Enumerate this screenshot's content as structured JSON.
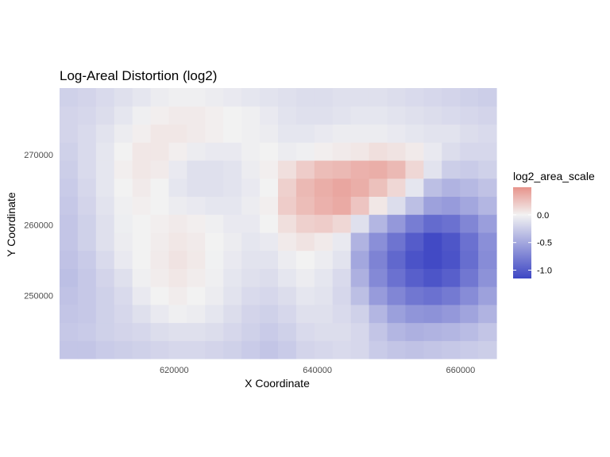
{
  "chart_data": {
    "type": "heatmap",
    "title": "Log-Areal Distortion (log2)",
    "xlabel": "X Coordinate",
    "ylabel": "Y Coordinate",
    "xlim": [
      604000,
      665000
    ],
    "ylim": [
      241000,
      279500
    ],
    "x_ticks": [
      620000,
      640000,
      660000
    ],
    "x_tick_labels": [
      "620000",
      "640000",
      "660000"
    ],
    "y_ticks": [
      250000,
      260000,
      270000
    ],
    "y_tick_labels": [
      "250000",
      "260000",
      "270000"
    ],
    "grid": false,
    "legend": {
      "title": "log2_area_scale",
      "placement": "right",
      "ticks": [
        0.0,
        -0.5,
        -1.0
      ],
      "tick_labels": [
        "0.0",
        "-0.5",
        "-1.0"
      ],
      "range": [
        -1.15,
        0.5
      ],
      "colors": {
        "low": "#3d46c4",
        "mid": "#f2f2f2",
        "high": "#e7938b"
      }
    },
    "grid_spec": {
      "cols": 24,
      "rows": 15,
      "x_start": 604000,
      "y_start": 241000,
      "x_step": 2541.667,
      "y_step": 2566.667
    },
    "z": [
      [
        -0.3,
        -0.3,
        -0.26,
        -0.24,
        -0.22,
        -0.2,
        -0.18,
        -0.18,
        -0.2,
        -0.22,
        -0.26,
        -0.3,
        -0.26,
        -0.2,
        -0.18,
        -0.16,
        -0.18,
        -0.26,
        -0.3,
        -0.32,
        -0.3,
        -0.28,
        -0.26,
        -0.24
      ],
      [
        -0.28,
        -0.26,
        -0.22,
        -0.2,
        -0.18,
        -0.14,
        -0.12,
        -0.12,
        -0.14,
        -0.18,
        -0.22,
        -0.26,
        -0.22,
        -0.16,
        -0.14,
        -0.14,
        -0.18,
        -0.3,
        -0.4,
        -0.44,
        -0.42,
        -0.4,
        -0.36,
        -0.3
      ],
      [
        -0.3,
        -0.28,
        -0.22,
        -0.18,
        -0.12,
        -0.06,
        -0.02,
        -0.04,
        -0.08,
        -0.14,
        -0.2,
        -0.22,
        -0.18,
        -0.12,
        -0.12,
        -0.16,
        -0.22,
        -0.4,
        -0.55,
        -0.62,
        -0.64,
        -0.6,
        -0.52,
        -0.42
      ],
      [
        -0.32,
        -0.28,
        -0.22,
        -0.16,
        -0.06,
        0.0,
        0.03,
        0.0,
        -0.04,
        -0.1,
        -0.16,
        -0.18,
        -0.14,
        -0.08,
        -0.1,
        -0.18,
        -0.34,
        -0.58,
        -0.72,
        -0.82,
        -0.86,
        -0.8,
        -0.68,
        -0.54
      ],
      [
        -0.34,
        -0.28,
        -0.2,
        -0.12,
        -0.02,
        0.03,
        0.06,
        0.03,
        -0.02,
        -0.08,
        -0.12,
        -0.14,
        -0.08,
        -0.04,
        -0.08,
        -0.16,
        -0.44,
        -0.7,
        -0.86,
        -0.98,
        -1.05,
        -0.98,
        -0.82,
        -0.64
      ],
      [
        -0.32,
        -0.26,
        -0.16,
        -0.06,
        0.0,
        0.04,
        0.08,
        0.05,
        -0.01,
        -0.06,
        -0.1,
        -0.1,
        -0.04,
        0.0,
        -0.04,
        -0.1,
        -0.5,
        -0.74,
        -0.92,
        -1.06,
        -1.12,
        -1.06,
        -0.88,
        -0.68
      ],
      [
        -0.3,
        -0.22,
        -0.12,
        -0.04,
        0.0,
        0.03,
        0.06,
        0.04,
        0.0,
        -0.04,
        -0.08,
        -0.06,
        0.04,
        0.08,
        0.04,
        -0.06,
        -0.42,
        -0.66,
        -0.84,
        -1.0,
        -1.12,
        -1.04,
        -0.86,
        -0.66
      ],
      [
        -0.3,
        -0.22,
        -0.12,
        -0.03,
        0.0,
        0.02,
        0.04,
        0.02,
        -0.02,
        -0.06,
        -0.06,
        0.0,
        0.1,
        0.18,
        0.2,
        0.14,
        -0.12,
        -0.4,
        -0.6,
        -0.78,
        -0.9,
        -0.86,
        -0.72,
        -0.56
      ],
      [
        -0.28,
        -0.2,
        -0.1,
        -0.02,
        0.02,
        0.0,
        -0.04,
        -0.06,
        -0.08,
        -0.08,
        -0.04,
        0.02,
        0.2,
        0.28,
        0.34,
        0.38,
        0.24,
        0.06,
        -0.14,
        -0.34,
        -0.54,
        -0.58,
        -0.5,
        -0.4
      ],
      [
        -0.26,
        -0.18,
        -0.08,
        0.0,
        0.04,
        0.0,
        -0.08,
        -0.12,
        -0.12,
        -0.1,
        -0.06,
        0.0,
        0.18,
        0.3,
        0.36,
        0.4,
        0.36,
        0.26,
        0.14,
        -0.08,
        -0.34,
        -0.42,
        -0.38,
        -0.32
      ],
      [
        -0.24,
        -0.16,
        -0.08,
        0.02,
        0.06,
        0.04,
        -0.06,
        -0.12,
        -0.12,
        -0.1,
        -0.04,
        0.02,
        0.1,
        0.2,
        0.28,
        0.3,
        0.34,
        0.36,
        0.3,
        0.14,
        -0.1,
        -0.24,
        -0.26,
        -0.22
      ],
      [
        -0.22,
        -0.16,
        -0.08,
        0.0,
        0.06,
        0.06,
        0.02,
        -0.04,
        -0.06,
        -0.06,
        -0.02,
        0.0,
        -0.04,
        -0.02,
        0.02,
        0.04,
        0.06,
        0.1,
        0.08,
        0.04,
        -0.06,
        -0.14,
        -0.18,
        -0.18
      ],
      [
        -0.2,
        -0.16,
        -0.1,
        -0.04,
        0.02,
        0.06,
        0.06,
        0.04,
        0.02,
        0.0,
        -0.02,
        -0.04,
        -0.08,
        -0.08,
        -0.06,
        -0.04,
        -0.04,
        -0.04,
        -0.06,
        -0.08,
        -0.1,
        -0.1,
        -0.14,
        -0.16
      ],
      [
        -0.2,
        -0.18,
        -0.14,
        -0.08,
        -0.02,
        0.02,
        0.04,
        0.04,
        0.02,
        0.0,
        -0.02,
        -0.06,
        -0.1,
        -0.12,
        -0.12,
        -0.1,
        -0.08,
        -0.08,
        -0.1,
        -0.12,
        -0.14,
        -0.16,
        -0.18,
        -0.2
      ],
      [
        -0.22,
        -0.2,
        -0.16,
        -0.12,
        -0.08,
        -0.04,
        -0.02,
        -0.02,
        -0.04,
        -0.06,
        -0.08,
        -0.1,
        -0.12,
        -0.14,
        -0.14,
        -0.12,
        -0.12,
        -0.12,
        -0.14,
        -0.16,
        -0.18,
        -0.2,
        -0.22,
        -0.24
      ]
    ]
  }
}
